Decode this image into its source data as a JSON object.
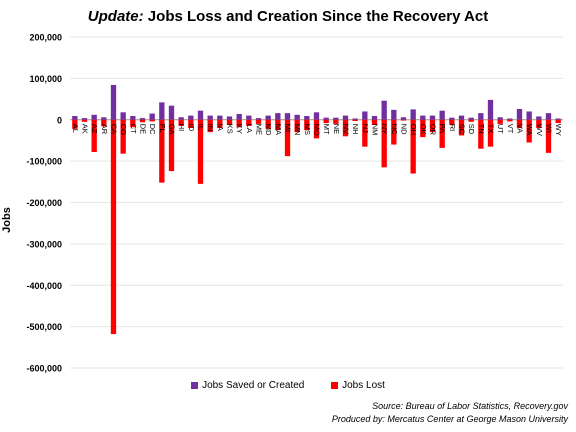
{
  "title": {
    "prefix": "Update:",
    "rest": " Jobs Loss and Creation Since the Recovery Act"
  },
  "source": {
    "line1": "Source: Bureau of Labor Statistics, Recovery.gov",
    "line2": "Produced by: Mercatus Center at George Mason University"
  },
  "colors": {
    "saved": "#7030a0",
    "lost": "#ff0000",
    "grid": "#e6e6e6",
    "axis": "#999999"
  },
  "chart_data": {
    "type": "bar",
    "ylabel": "Jobs",
    "ylim": [
      -600000,
      200000
    ],
    "yticks": [
      200000,
      100000,
      0,
      -100000,
      -200000,
      -300000,
      -400000,
      -500000,
      -600000
    ],
    "ytick_labels": [
      "200,000",
      "100,000",
      "0",
      "-100,000",
      "-200,000",
      "-300,000",
      "-400,000",
      "-500,000",
      "-600,000"
    ],
    "legend_position": "bottom",
    "categories": [
      "AL",
      "AK",
      "AZ",
      "AR",
      "CA",
      "CO",
      "CT",
      "DE",
      "DC",
      "FL",
      "GA",
      "HI",
      "ID",
      "IL",
      "IN",
      "IA",
      "KS",
      "KY",
      "LA",
      "ME",
      "MD",
      "MA",
      "MI",
      "MN",
      "MS",
      "MO",
      "MT",
      "NE",
      "NV",
      "NH",
      "NJ",
      "NM",
      "NY",
      "NC",
      "ND",
      "OH",
      "OK",
      "OR",
      "PA",
      "RI",
      "SC",
      "SD",
      "TN",
      "TX",
      "UT",
      "VT",
      "VA",
      "WA",
      "WV",
      "WI",
      "WY"
    ],
    "series": [
      {
        "name": "Jobs Saved or Created",
        "values": [
          9000,
          4000,
          12000,
          6000,
          84000,
          18000,
          9000,
          4000,
          15000,
          42000,
          34000,
          6000,
          10000,
          22000,
          10000,
          10000,
          8000,
          14000,
          10000,
          4000,
          10000,
          16000,
          16000,
          12000,
          9000,
          18000,
          5000,
          5000,
          10000,
          3000,
          20000,
          9000,
          46000,
          24000,
          6000,
          25000,
          10000,
          10000,
          22000,
          5000,
          10000,
          5000,
          16000,
          48000,
          6000,
          3000,
          26000,
          20000,
          8000,
          16000,
          3000
        ]
      },
      {
        "name": "Jobs Lost",
        "values": [
          -22000,
          -5000,
          -78000,
          -16000,
          -518000,
          -82000,
          -18000,
          -6000,
          -4000,
          -152000,
          -124000,
          -15000,
          -20000,
          -155000,
          -30000,
          -20000,
          -12000,
          -18000,
          -15000,
          -10000,
          -22000,
          -25000,
          -88000,
          -30000,
          -25000,
          -45000,
          -8000,
          -10000,
          -40000,
          -3000,
          -65000,
          -12000,
          -115000,
          -60000,
          -2000,
          -130000,
          -42000,
          -30000,
          -68000,
          -12000,
          -38000,
          -5000,
          -70000,
          -65000,
          -10000,
          -4000,
          -20000,
          -55000,
          -20000,
          -80000,
          -8000
        ]
      }
    ]
  }
}
